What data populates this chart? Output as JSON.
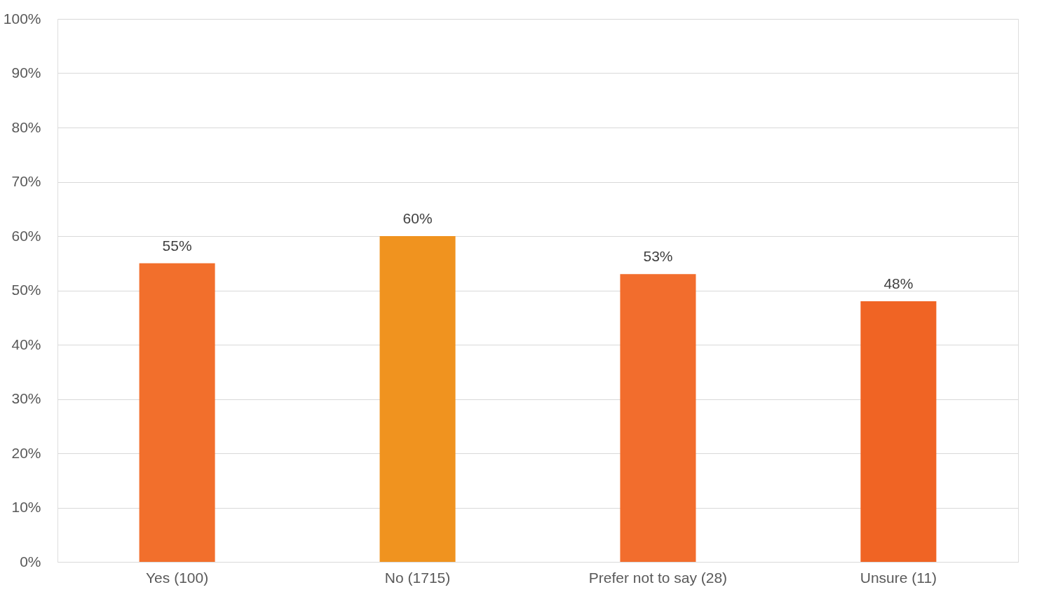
{
  "chart_data": {
    "type": "bar",
    "categories": [
      "Yes (100)",
      "No (1715)",
      "Prefer not to say (28)",
      "Unsure (11)"
    ],
    "values": [
      55,
      60,
      53,
      48
    ],
    "colors": [
      "#f26f2c",
      "#f0931f",
      "#f26d2d",
      "#f06424"
    ],
    "value_labels": [
      "55%",
      "60%",
      "53%",
      "48%"
    ],
    "ylim": [
      0,
      100
    ],
    "yticks": [
      {
        "value": 0,
        "label": "0%"
      },
      {
        "value": 10,
        "label": "10%"
      },
      {
        "value": 20,
        "label": "20%"
      },
      {
        "value": 30,
        "label": "30%"
      },
      {
        "value": 40,
        "label": "40%"
      },
      {
        "value": 50,
        "label": "50%"
      },
      {
        "value": 60,
        "label": "60%"
      },
      {
        "value": 70,
        "label": "70%"
      },
      {
        "value": 80,
        "label": "80%"
      },
      {
        "value": 90,
        "label": "90%"
      },
      {
        "value": 100,
        "label": "100%"
      }
    ],
    "grid": "y"
  }
}
